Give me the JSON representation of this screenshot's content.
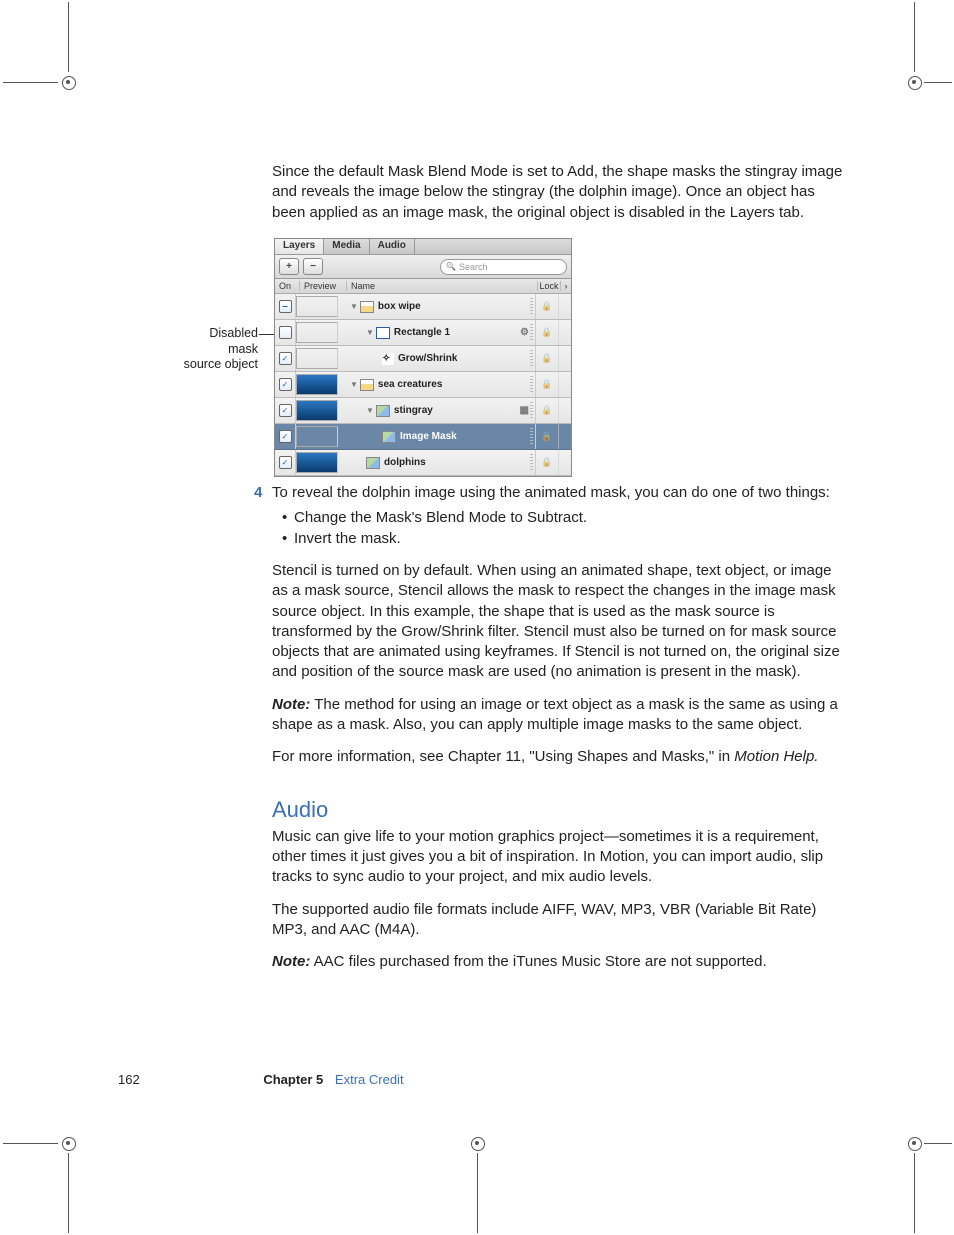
{
  "paragraphs": {
    "intro": "Since the default Mask Blend Mode is set to Add, the shape masks the stingray image and reveals the image below the stingray (the dolphin image). Once an object has been applied as an image mask, the original object is disabled in the Layers tab.",
    "step4": "To reveal the dolphin image using the animated mask, you can do one of two things:",
    "bullet1": "Change the Mask's Blend Mode to Subtract.",
    "bullet2": "Invert the mask.",
    "stencil": "Stencil is turned on by default. When using an animated shape, text object, or image as a mask source, Stencil allows the mask to respect the changes in the image mask source object. In this example, the shape that is used as the mask source is transformed by the Grow/Shrink filter. Stencil must also be turned on for mask source objects that are animated using keyframes. If Stencil is not turned on, the original size and position of the source mask are used (no animation is present in the mask).",
    "note1_label": "Note:",
    "note1": "  The method for using an image or text object as a mask is the same as using a shape as a mask. Also, you can apply multiple image masks to the same object.",
    "moreinfo_a": "For more information, see Chapter 11, \"Using Shapes and Masks,\" in ",
    "moreinfo_b": "Motion Help.",
    "audio_heading": "Audio",
    "audio1": "Music can give life to your motion graphics project—sometimes it is a requirement, other times it just gives you a bit of inspiration. In Motion, you can import audio, slip tracks to sync audio to your project, and mix audio levels.",
    "audio2": "The supported audio file formats include AIFF, WAV, MP3, VBR (Variable Bit Rate) MP3, and AAC (M4A).",
    "note2_label": "Note:",
    "note2": "  AAC files purchased from the iTunes Music Store are not supported."
  },
  "step_number": "4",
  "annotation": {
    "line1": "Disabled mask",
    "line2": "source object"
  },
  "panel": {
    "tabs": [
      "Layers",
      "Media",
      "Audio"
    ],
    "active_tab": 0,
    "plus": "+",
    "minus": "−",
    "search_placeholder": "Search",
    "headers": {
      "on": "On",
      "preview": "Preview",
      "name": "Name",
      "lock": "Lock"
    },
    "rows": [
      {
        "check": "minus",
        "preview": "blank",
        "indent": 8,
        "disclosure": true,
        "icon": "stack",
        "label": "box wipe",
        "extra": ""
      },
      {
        "check": "off",
        "preview": "blank",
        "indent": 24,
        "disclosure": true,
        "icon": "rect",
        "label": "Rectangle 1",
        "extra": "gear"
      },
      {
        "check": "on",
        "preview": "blank",
        "indent": 40,
        "disclosure": false,
        "icon": "filter",
        "label": "Grow/Shrink",
        "extra": ""
      },
      {
        "check": "on",
        "preview": "sea",
        "indent": 8,
        "disclosure": true,
        "icon": "stack",
        "label": "sea creatures",
        "extra": ""
      },
      {
        "check": "on",
        "preview": "sea",
        "indent": 24,
        "disclosure": true,
        "icon": "img",
        "label": "stingray",
        "extra": "grid"
      },
      {
        "check": "on",
        "preview": "blank",
        "indent": 40,
        "disclosure": false,
        "icon": "img",
        "label": "Image Mask",
        "extra": "",
        "selected": true
      },
      {
        "check": "on",
        "preview": "sea",
        "indent": 24,
        "disclosure": false,
        "icon": "img",
        "label": "dolphins",
        "extra": ""
      }
    ],
    "lock_glyph": "🔒",
    "arrow_glyph": "›",
    "gear_glyph": "⚙",
    "grid_glyph": "▦"
  },
  "footer": {
    "page": "162",
    "chapter_label": "Chapter 5",
    "chapter_name": "Extra Credit"
  },
  "colors": {
    "accent": "#3b6fb6",
    "selection": "#6b87a8",
    "text": "#222222"
  }
}
